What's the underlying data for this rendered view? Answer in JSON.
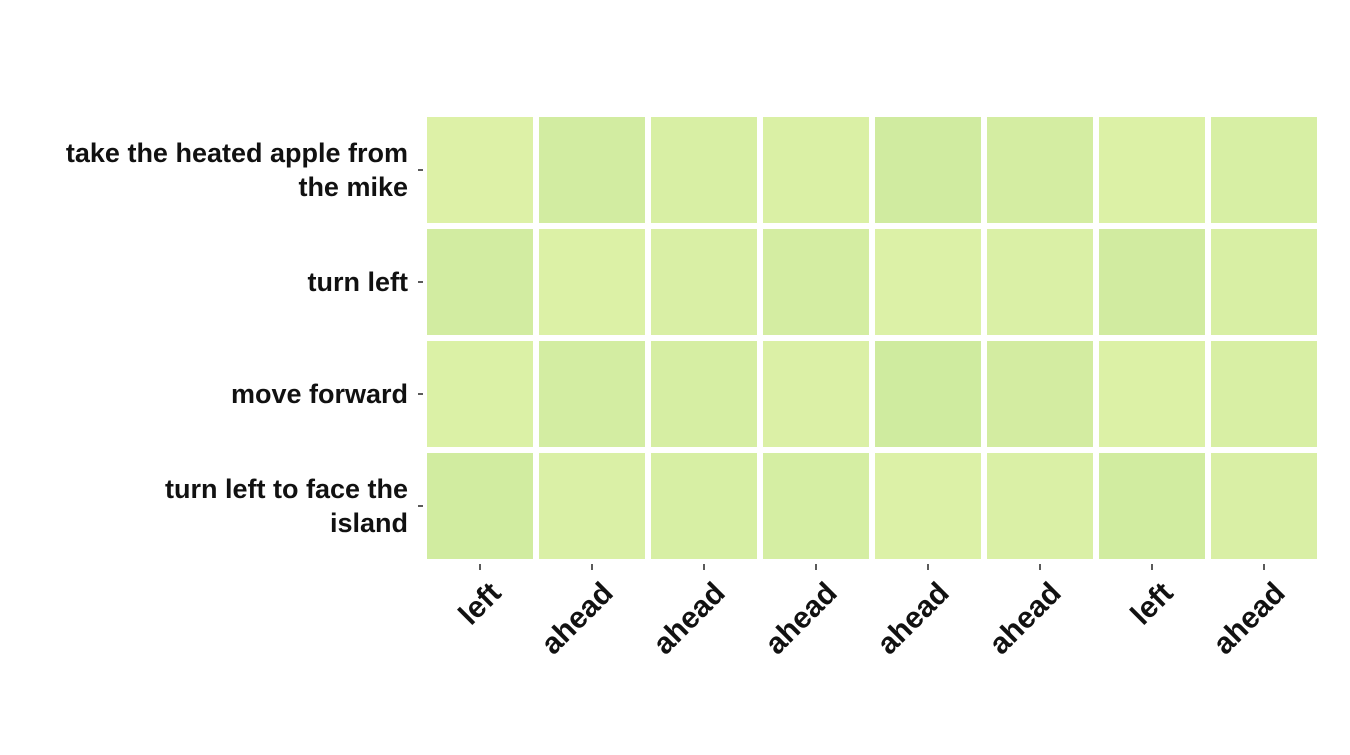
{
  "chart_data": {
    "type": "heatmap",
    "rows": [
      [
        "take the heated apple from",
        "the mike"
      ],
      [
        "turn left"
      ],
      [
        "move forward"
      ],
      [
        "turn left to face the",
        "island"
      ]
    ],
    "columns": [
      "left",
      "ahead",
      "ahead",
      "ahead",
      "ahead",
      "ahead",
      "left",
      "ahead"
    ],
    "values": [
      [
        0.2,
        0.62,
        0.38,
        0.32,
        0.7,
        0.55,
        0.24,
        0.42
      ],
      [
        0.6,
        0.25,
        0.35,
        0.55,
        0.22,
        0.3,
        0.66,
        0.4
      ],
      [
        0.26,
        0.56,
        0.46,
        0.28,
        0.72,
        0.58,
        0.24,
        0.38
      ],
      [
        0.64,
        0.3,
        0.42,
        0.5,
        0.22,
        0.3,
        0.64,
        0.36
      ]
    ],
    "colormap": [
      "#e2f4aa",
      "#c8e79b"
    ],
    "grid": false,
    "legend": "none",
    "title": "",
    "xlabel": "",
    "ylabel": ""
  }
}
